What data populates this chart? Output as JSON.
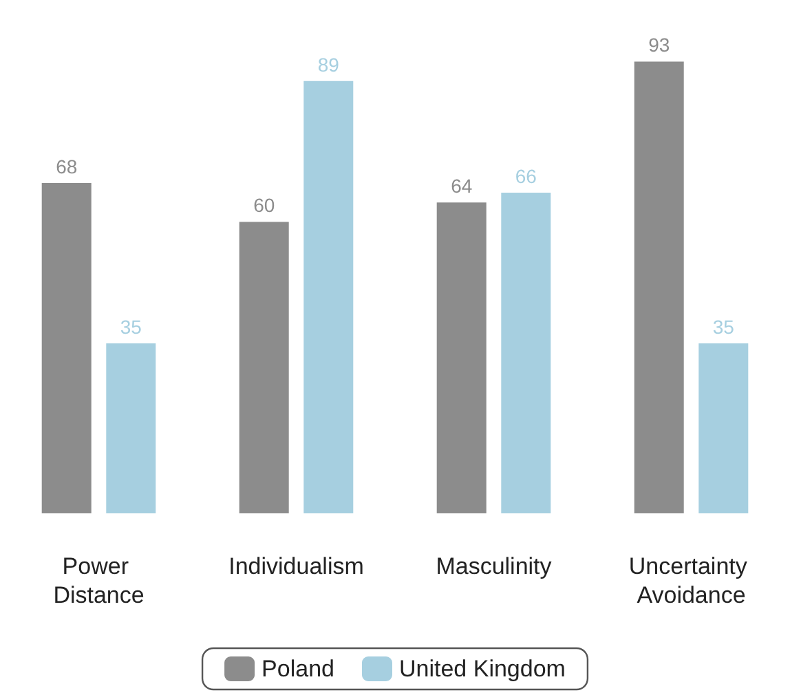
{
  "chart_data": {
    "type": "bar",
    "categories": [
      "Power Distance",
      "Individualism",
      "Masculinity",
      "Uncertainty Avoidance"
    ],
    "series": [
      {
        "name": "Poland",
        "color": "#8c8c8c",
        "values": [
          68,
          60,
          64,
          93
        ]
      },
      {
        "name": "United Kingdom",
        "color": "#a6cfe0",
        "values": [
          35,
          89,
          66,
          35
        ]
      }
    ],
    "data_labels": true,
    "legend": "bottom"
  }
}
